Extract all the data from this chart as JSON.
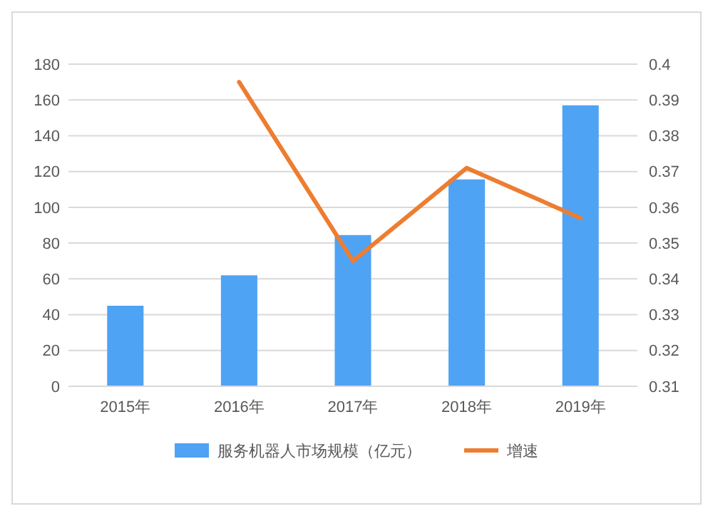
{
  "chart_data": {
    "type": "bar",
    "categories": [
      "2015年",
      "2016年",
      "2017年",
      "2018年",
      "2019年"
    ],
    "series": [
      {
        "name": "服务机器人市场规模（亿元）",
        "color": "#4ea3f5",
        "values": [
          45,
          62,
          84.5,
          115.6,
          157
        ]
      },
      {
        "name": "增速",
        "type": "line",
        "axis": "y2",
        "color": "#ed7d31",
        "values": [
          null,
          0.395,
          0.345,
          0.371,
          0.357
        ]
      }
    ],
    "ylim": [
      0,
      180
    ],
    "yticks": [
      0,
      20,
      40,
      60,
      80,
      100,
      120,
      140,
      160,
      180
    ],
    "y2lim": [
      0.31,
      0.4
    ],
    "y2ticks": [
      0.31,
      0.32,
      0.33,
      0.34,
      0.35,
      0.36,
      0.37,
      0.38,
      0.39,
      {
        "value": 0.4,
        "label": "0.4"
      }
    ],
    "grid": "y",
    "legend": "bottom",
    "marker": "none"
  }
}
